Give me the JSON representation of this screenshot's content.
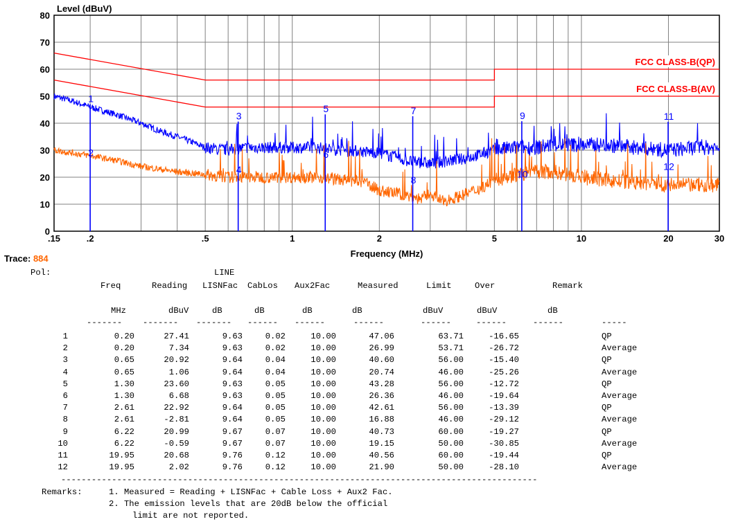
{
  "chart_data": {
    "type": "line",
    "ylabel": "Level (dBuV)",
    "xlabel": "Frequency (MHz)",
    "xscale": "log",
    "xlim": [
      0.15,
      30
    ],
    "ylim": [
      0,
      80
    ],
    "grid": true,
    "x_tick_labels": [
      {
        "x": 0.15,
        "label": ".15"
      },
      {
        "x": 0.2,
        "label": ".2"
      },
      {
        "x": 0.5,
        "label": ".5"
      },
      {
        "x": 1,
        "label": "1"
      },
      {
        "x": 2,
        "label": "2"
      },
      {
        "x": 5,
        "label": "5"
      },
      {
        "x": 10,
        "label": "10"
      },
      {
        "x": 20,
        "label": "20"
      },
      {
        "x": 30,
        "label": "30"
      }
    ],
    "y_tick_labels": [
      "0",
      "10",
      "20",
      "30",
      "40",
      "50",
      "60",
      "70",
      "80"
    ],
    "limits": [
      {
        "name": "FCC CLASS-B(QP)",
        "color": "#ff0000",
        "points": [
          [
            0.15,
            66
          ],
          [
            0.5,
            56
          ],
          [
            5,
            56
          ],
          [
            5,
            60
          ],
          [
            30,
            60
          ]
        ]
      },
      {
        "name": "FCC CLASS-B(AV)",
        "color": "#ff0000",
        "points": [
          [
            0.15,
            56
          ],
          [
            0.5,
            46
          ],
          [
            5,
            46
          ],
          [
            5,
            50
          ],
          [
            30,
            50
          ]
        ]
      }
    ],
    "series": [
      {
        "color": "#0000ff",
        "points": [
          [
            0.15,
            50
          ],
          [
            0.17,
            48.5
          ],
          [
            0.2,
            46
          ],
          [
            0.25,
            43
          ],
          [
            0.3,
            40
          ],
          [
            0.35,
            37
          ],
          [
            0.4,
            35
          ],
          [
            0.45,
            33
          ],
          [
            0.5,
            31
          ],
          [
            0.6,
            30
          ],
          [
            0.7,
            31
          ],
          [
            0.8,
            31
          ],
          [
            1.0,
            31
          ],
          [
            1.2,
            31
          ],
          [
            1.5,
            30
          ],
          [
            2.0,
            29
          ],
          [
            2.5,
            26
          ],
          [
            3.0,
            25
          ],
          [
            4.0,
            27
          ],
          [
            5.0,
            30
          ],
          [
            6.0,
            31
          ],
          [
            7.0,
            31
          ],
          [
            8.0,
            32
          ],
          [
            10,
            32
          ],
          [
            12,
            32
          ],
          [
            15,
            31
          ],
          [
            20,
            30
          ],
          [
            25,
            31
          ],
          [
            30,
            31
          ]
        ]
      },
      {
        "color": "#ff6600",
        "points": [
          [
            0.15,
            30
          ],
          [
            0.2,
            28
          ],
          [
            0.25,
            26
          ],
          [
            0.3,
            24
          ],
          [
            0.4,
            22
          ],
          [
            0.5,
            21
          ],
          [
            0.6,
            20
          ],
          [
            0.7,
            20
          ],
          [
            0.8,
            20
          ],
          [
            1.0,
            20
          ],
          [
            1.2,
            20
          ],
          [
            1.5,
            19
          ],
          [
            1.8,
            18
          ],
          [
            2.0,
            15
          ],
          [
            2.3,
            14
          ],
          [
            2.5,
            13
          ],
          [
            2.8,
            12
          ],
          [
            3.0,
            14
          ],
          [
            3.3,
            11
          ],
          [
            3.8,
            13
          ],
          [
            4.5,
            16
          ],
          [
            5.0,
            19
          ],
          [
            6.0,
            21
          ],
          [
            7.0,
            22
          ],
          [
            8.0,
            22
          ],
          [
            10,
            20
          ],
          [
            12,
            19
          ],
          [
            15,
            18
          ],
          [
            20,
            17
          ],
          [
            25,
            17
          ],
          [
            30,
            17
          ]
        ]
      }
    ],
    "markers": [
      {
        "label": "1",
        "freq": 0.2,
        "level": 47.06
      },
      {
        "label": "2",
        "freq": 0.2,
        "level": 26.99
      },
      {
        "label": "3",
        "freq": 0.65,
        "level": 40.6
      },
      {
        "label": "4",
        "freq": 0.65,
        "level": 20.74
      },
      {
        "label": "5",
        "freq": 1.3,
        "level": 43.28
      },
      {
        "label": "6",
        "freq": 1.3,
        "level": 26.36
      },
      {
        "label": "7",
        "freq": 2.61,
        "level": 42.61
      },
      {
        "label": "8",
        "freq": 2.61,
        "level": 16.88
      },
      {
        "label": "9",
        "freq": 6.22,
        "level": 40.73
      },
      {
        "label": "10",
        "freq": 6.22,
        "level": 19.15
      },
      {
        "label": "11",
        "freq": 19.95,
        "level": 40.56
      },
      {
        "label": "12",
        "freq": 19.95,
        "level": 21.9
      }
    ]
  },
  "trace": {
    "label": "Trace:",
    "value": "884"
  },
  "report": {
    "pol_label": "Pol:",
    "pol_value": "LINE",
    "headers": [
      "Freq",
      "Reading",
      "LISNFac",
      "CabLos",
      "Aux2Fac",
      "Measured",
      "Limit",
      "Over",
      "Remark"
    ],
    "units": [
      "MHz",
      "dBuV",
      "dB",
      "dB",
      "dB",
      "dB",
      "dBuV",
      "dBuV",
      "dB"
    ],
    "rows": [
      [
        "1",
        "0.20",
        "27.41",
        "9.63",
        "0.02",
        "10.00",
        "47.06",
        "63.71",
        "-16.65",
        "QP"
      ],
      [
        "2",
        "0.20",
        "7.34",
        "9.63",
        "0.02",
        "10.00",
        "26.99",
        "53.71",
        "-26.72",
        "Average"
      ],
      [
        "3",
        "0.65",
        "20.92",
        "9.64",
        "0.04",
        "10.00",
        "40.60",
        "56.00",
        "-15.40",
        "QP"
      ],
      [
        "4",
        "0.65",
        "1.06",
        "9.64",
        "0.04",
        "10.00",
        "20.74",
        "46.00",
        "-25.26",
        "Average"
      ],
      [
        "5",
        "1.30",
        "23.60",
        "9.63",
        "0.05",
        "10.00",
        "43.28",
        "56.00",
        "-12.72",
        "QP"
      ],
      [
        "6",
        "1.30",
        "6.68",
        "9.63",
        "0.05",
        "10.00",
        "26.36",
        "46.00",
        "-19.64",
        "Average"
      ],
      [
        "7",
        "2.61",
        "22.92",
        "9.64",
        "0.05",
        "10.00",
        "42.61",
        "56.00",
        "-13.39",
        "QP"
      ],
      [
        "8",
        "2.61",
        "-2.81",
        "9.64",
        "0.05",
        "10.00",
        "16.88",
        "46.00",
        "-29.12",
        "Average"
      ],
      [
        "9",
        "6.22",
        "20.99",
        "9.67",
        "0.07",
        "10.00",
        "40.73",
        "60.00",
        "-19.27",
        "QP"
      ],
      [
        "10",
        "6.22",
        "-0.59",
        "9.67",
        "0.07",
        "10.00",
        "19.15",
        "50.00",
        "-30.85",
        "Average"
      ],
      [
        "11",
        "19.95",
        "20.68",
        "9.76",
        "0.12",
        "10.00",
        "40.56",
        "60.00",
        "-19.44",
        "QP"
      ],
      [
        "12",
        "19.95",
        "2.02",
        "9.76",
        "0.12",
        "10.00",
        "21.90",
        "50.00",
        "-28.10",
        "Average"
      ]
    ],
    "remarks_label": "Remarks:",
    "remark_1": "1. Measured = Reading + LISNFac + Cable Loss + Aux2 Fac.",
    "remark_2a": "2. The emission levels that are 20dB below the official",
    "remark_2b": "limit are not reported."
  }
}
